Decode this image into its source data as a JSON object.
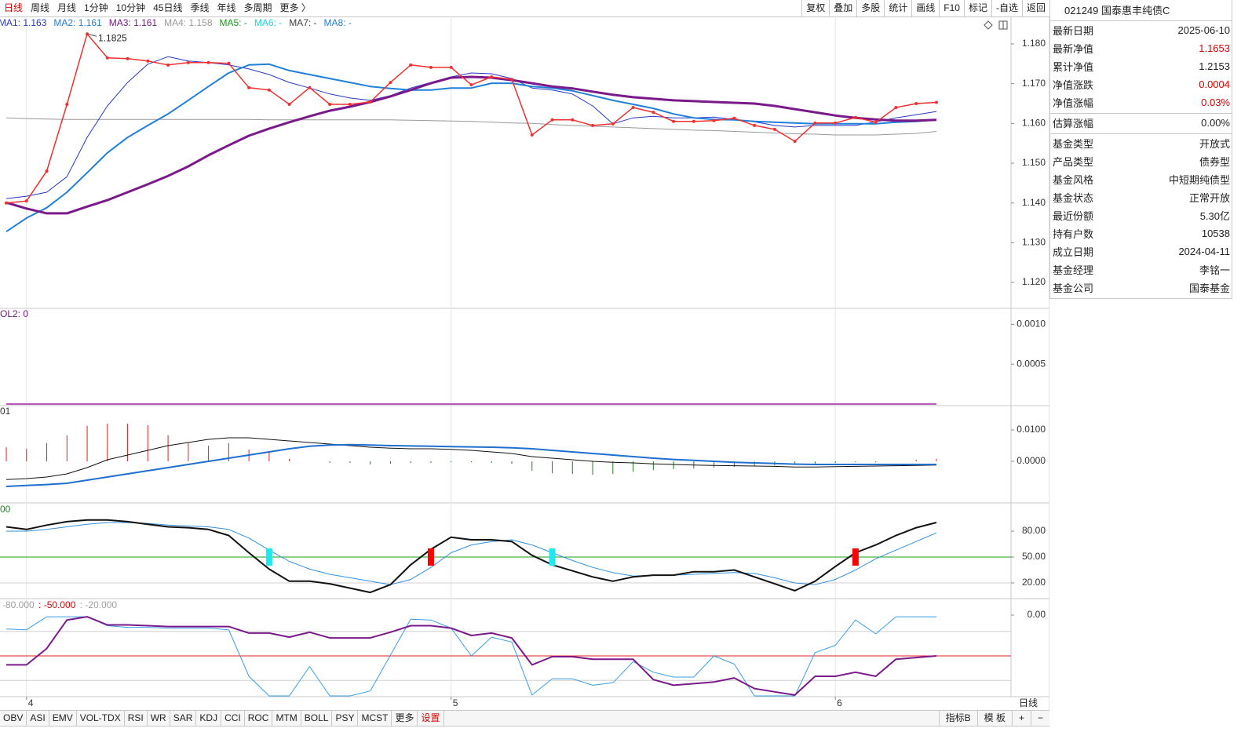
{
  "toolbar": {
    "periods": [
      "日线",
      "周线",
      "月线",
      "1分钟",
      "10分钟",
      "45日线",
      "季线",
      "年线",
      "多周期",
      "更多 〉"
    ],
    "active": 0,
    "active_color": "#e00000",
    "tools": [
      "复权",
      "叠加",
      "多股",
      "统计",
      "画线",
      "F10",
      "标记",
      "-自选",
      "返回"
    ]
  },
  "fund": {
    "title": "021249 国泰惠丰纯债C",
    "groups": [
      [
        {
          "label": "最新日期",
          "value": "2025-06-10"
        },
        {
          "label": "最新净值",
          "value": "1.1653",
          "color": "#e00000"
        },
        {
          "label": "累计净值",
          "value": "1.2153"
        },
        {
          "label": "净值涨跌",
          "value": "0.0004",
          "color": "#e00000"
        },
        {
          "label": "净值涨幅",
          "value": "0.03%",
          "color": "#e00000"
        }
      ],
      [
        {
          "label": "估算涨幅",
          "value": "0.00%"
        }
      ],
      [
        {
          "label": "基金类型",
          "value": "开放式"
        },
        {
          "label": "产品类型",
          "value": "债券型"
        },
        {
          "label": "基金风格",
          "value": "中短期纯债型"
        },
        {
          "label": "基金状态",
          "value": "正常开放"
        },
        {
          "label": "最近份额",
          "value": "5.30亿"
        },
        {
          "label": "持有户数",
          "value": "10538"
        },
        {
          "label": "成立日期",
          "value": "2024-04-11"
        },
        {
          "label": "基金经理",
          "value": "李铭一"
        },
        {
          "label": "基金公司",
          "value": "国泰基金"
        }
      ]
    ]
  },
  "main": {
    "legend": [
      {
        "text": "MA1: 1.163",
        "color": "#2838c8"
      },
      {
        "text": "MA2: 1.161",
        "color": "#2080d8"
      },
      {
        "text": "MA3: 1.161",
        "color": "#7a1a8a"
      },
      {
        "text": "MA4: 1.158",
        "color": "#999999"
      },
      {
        "text": "MA5: -",
        "color": "#1a9a1a"
      },
      {
        "text": "MA6: -",
        "color": "#20d0e0"
      },
      {
        "text": "MA7: -",
        "color": "#404040"
      },
      {
        "text": "MA8: -",
        "color": "#2080d8"
      }
    ],
    "ylim": [
      1.1135,
      1.1867
    ],
    "yticks": [
      {
        "value": 1.12,
        "label": "1.120"
      },
      {
        "value": 1.13,
        "label": "1.130"
      },
      {
        "value": 1.14,
        "label": "1.140"
      },
      {
        "value": 1.15,
        "label": "1.150"
      },
      {
        "value": 1.16,
        "label": "1.160"
      },
      {
        "value": 1.17,
        "label": "1.170"
      },
      {
        "value": 1.18,
        "label": "1.180"
      }
    ],
    "price": {
      "color": "#f03030",
      "values": [
        1.14,
        1.1405,
        1.148,
        1.1648,
        1.1825,
        1.1765,
        1.1763,
        1.1757,
        1.1747,
        1.1753,
        1.1753,
        1.1751,
        1.169,
        1.1684,
        1.1648,
        1.169,
        1.1648,
        1.1648,
        1.1654,
        1.1703,
        1.1747,
        1.1741,
        1.1741,
        1.1697,
        1.1717,
        1.1711,
        1.1571,
        1.1609,
        1.1609,
        1.1595,
        1.1599,
        1.164,
        1.1628,
        1.1605,
        1.1605,
        1.1607,
        1.1613,
        1.1595,
        1.1585,
        1.1555,
        1.1601,
        1.1601,
        1.1615,
        1.1603,
        1.164,
        1.165,
        1.1653
      ]
    },
    "ma": [
      {
        "color": "#999999",
        "width": 1,
        "values": [
          1.1614,
          1.1612,
          1.1611,
          1.161,
          1.161,
          1.161,
          1.161,
          1.161,
          1.161,
          1.161,
          1.161,
          1.161,
          1.161,
          1.1609,
          1.1609,
          1.1609,
          1.1609,
          1.1609,
          1.1609,
          1.1609,
          1.1608,
          1.1607,
          1.1606,
          1.1605,
          1.1603,
          1.1601,
          1.16,
          1.1597,
          1.1595,
          1.1593,
          1.1591,
          1.1589,
          1.1587,
          1.1585,
          1.1583,
          1.1582,
          1.158,
          1.1578,
          1.1576,
          1.1574,
          1.1573,
          1.1571,
          1.1571,
          1.1571,
          1.1573,
          1.1575,
          1.158
        ]
      },
      {
        "color": "#2838c8",
        "width": 1,
        "values": [
          1.1411,
          1.1417,
          1.1427,
          1.1466,
          1.1565,
          1.1644,
          1.1703,
          1.1749,
          1.1768,
          1.1757,
          1.1753,
          1.1747,
          1.1737,
          1.1723,
          1.1703,
          1.1689,
          1.1674,
          1.1664,
          1.1658,
          1.167,
          1.1689,
          1.1703,
          1.1717,
          1.1727,
          1.1725,
          1.1713,
          1.1689,
          1.1684,
          1.1674,
          1.1644,
          1.1599,
          1.1614,
          1.1618,
          1.1614,
          1.1614,
          1.1616,
          1.161,
          1.1604,
          1.1595,
          1.1591,
          1.1595,
          1.1595,
          1.1595,
          1.1604,
          1.1614,
          1.1622,
          1.163
        ]
      },
      {
        "color": "#2080d8",
        "width": 2,
        "values": [
          1.1328,
          1.1362,
          1.1388,
          1.1427,
          1.1476,
          1.1526,
          1.1565,
          1.1595,
          1.1624,
          1.1658,
          1.1693,
          1.1727,
          1.1747,
          1.1749,
          1.1733,
          1.1723,
          1.1713,
          1.1703,
          1.1693,
          1.1688,
          1.1684,
          1.1684,
          1.1689,
          1.1689,
          1.1701,
          1.1701,
          1.1693,
          1.1689,
          1.1682,
          1.167,
          1.1658,
          1.1648,
          1.1638,
          1.1624,
          1.1614,
          1.161,
          1.1609,
          1.1605,
          1.1603,
          1.1601,
          1.1599,
          1.1599,
          1.1599,
          1.1599,
          1.1603,
          1.1605,
          1.1609
        ]
      },
      {
        "color": "#7a1a8a",
        "width": 3,
        "values": [
          1.1401,
          1.1386,
          1.1374,
          1.1374,
          1.1391,
          1.1407,
          1.1427,
          1.1447,
          1.1468,
          1.1492,
          1.152,
          1.1545,
          1.1569,
          1.1587,
          1.1603,
          1.1618,
          1.1632,
          1.1642,
          1.1654,
          1.1668,
          1.1684,
          1.1701,
          1.1715,
          1.1717,
          1.1715,
          1.1709,
          1.1701,
          1.1693,
          1.1688,
          1.168,
          1.1672,
          1.1666,
          1.1662,
          1.1658,
          1.1656,
          1.1654,
          1.1652,
          1.165,
          1.1644,
          1.1636,
          1.1628,
          1.162,
          1.1614,
          1.161,
          1.1607,
          1.1607,
          1.1609
        ]
      }
    ],
    "max_label": {
      "text": "1.1825",
      "index": 4
    }
  },
  "vol": {
    "label": "OL2: 0",
    "color": "#a020a0",
    "ylim": [
      -2e-05,
      0.0012
    ],
    "yticks": [
      {
        "value": 0.0005,
        "label": "0.0005"
      },
      {
        "value": 0.001,
        "label": "0.0010"
      }
    ],
    "values": [
      0,
      0,
      0,
      0,
      0,
      0,
      0,
      0,
      0,
      0,
      0,
      0,
      0,
      0,
      0,
      0,
      0,
      0,
      0,
      0,
      0,
      0,
      0,
      0,
      0,
      0,
      0,
      0,
      0,
      0,
      0,
      0,
      0,
      0,
      0,
      0,
      0,
      0,
      0,
      0,
      0,
      0,
      0,
      0,
      0,
      0,
      0
    ]
  },
  "macd": {
    "label": "01",
    "ylim": [
      -0.01325,
      0.01775
    ],
    "yticks": [
      {
        "value": 0,
        "label": "0.0000"
      },
      {
        "value": 0.01,
        "label": "0.0100"
      }
    ],
    "up_color": "#e02020",
    "down_color": "#208020",
    "bars": [
      0.0045,
      0.004,
      0.0058,
      0.0083,
      0.0113,
      0.012,
      0.012,
      0.0115,
      0.0083,
      0.0058,
      0.005,
      0.0058,
      0.0038,
      0.0028,
      0.0008,
      0,
      -0.0005,
      -0.0005,
      -0.001,
      -0.0008,
      -0.0005,
      -0.0005,
      -0.0003,
      -0.0003,
      -0.0005,
      -0.0008,
      -0.003,
      -0.0038,
      -0.004,
      -0.0043,
      -0.004,
      -0.0033,
      -0.0028,
      -0.0025,
      -0.0023,
      -0.002,
      -0.0018,
      -0.0015,
      -0.0013,
      -0.001,
      -0.0008,
      -0.0005,
      -0.0003,
      -0.0003,
      0,
      0.0005,
      0.0008
    ],
    "lines": [
      {
        "color": "#111111",
        "width": 1,
        "values": [
          -0.0058,
          -0.0055,
          -0.005,
          -0.004,
          -0.002,
          0.0005,
          0.002,
          0.0035,
          0.005,
          0.006,
          0.007,
          0.0075,
          0.0075,
          0.007,
          0.0065,
          0.006,
          0.0055,
          0.005,
          0.0045,
          0.0042,
          0.004,
          0.004,
          0.0038,
          0.0035,
          0.003,
          0.0025,
          0.0015,
          0.001,
          0.0005,
          0,
          -0.0003,
          -0.0005,
          -0.0008,
          -0.001,
          -0.0012,
          -0.0013,
          -0.0014,
          -0.0015,
          -0.0016,
          -0.0018,
          -0.0018,
          -0.0017,
          -0.0016,
          -0.0015,
          -0.0014,
          -0.0013,
          -0.0012
        ]
      },
      {
        "color": "#1e6fd0",
        "width": 2,
        "values": [
          -0.008,
          -0.0077,
          -0.0074,
          -0.007,
          -0.006,
          -0.005,
          -0.004,
          -0.003,
          -0.002,
          -0.001,
          0,
          0.001,
          0.002,
          0.003,
          0.004,
          0.0048,
          0.0052,
          0.0053,
          0.0052,
          0.005,
          0.0049,
          0.0048,
          0.0047,
          0.0046,
          0.0045,
          0.0043,
          0.004,
          0.0035,
          0.003,
          0.0025,
          0.002,
          0.0015,
          0.001,
          0.0006,
          0.0003,
          0,
          -0.0003,
          -0.0005,
          -0.0007,
          -0.0009,
          -0.001,
          -0.001,
          -0.001,
          -0.001,
          -0.001,
          -0.001,
          -0.001
        ]
      }
    ]
  },
  "kdj": {
    "label": "00",
    "label_color": "#1a8a1a",
    "ylim": [
      1.8,
      112.7
    ],
    "yticks": [
      {
        "value": 20,
        "label": "20.00"
      },
      {
        "value": 50,
        "label": "50.00"
      },
      {
        "value": 80,
        "label": "80.00"
      }
    ],
    "ref_lines": [
      {
        "value": 20,
        "color": "#d0d0d0"
      },
      {
        "value": 50,
        "color": "#1aa01a"
      }
    ],
    "lines": [
      {
        "color": "#3090e0",
        "width": 1,
        "values": [
          80,
          80,
          82,
          85,
          88,
          90,
          90,
          89,
          87,
          86,
          85,
          82,
          72,
          58,
          45,
          36,
          30,
          26,
          22,
          18,
          24,
          38,
          55,
          64,
          68,
          70,
          64,
          55,
          46,
          38,
          32,
          28,
          29,
          29,
          30,
          31,
          32,
          31,
          26,
          20,
          18,
          24,
          35,
          48,
          58,
          68,
          78
        ]
      },
      {
        "color": "#111111",
        "width": 2,
        "values": [
          85,
          82,
          87,
          91,
          93,
          93,
          91,
          88,
          85,
          84,
          82,
          75,
          55,
          36,
          22,
          22,
          19,
          14,
          9,
          18,
          41,
          59,
          73,
          70,
          70,
          68,
          52,
          41,
          34,
          27,
          22,
          27,
          29,
          29,
          33,
          33,
          35,
          27,
          19,
          11,
          22,
          39,
          55,
          64,
          75,
          84,
          90
        ]
      }
    ],
    "signals": [
      {
        "index": 13,
        "color": "#20e8f0"
      },
      {
        "index": 21,
        "color": "#ff0000"
      },
      {
        "index": 27,
        "color": "#20e8f0"
      },
      {
        "index": 42,
        "color": "#ff0000"
      }
    ]
  },
  "wr": {
    "labels": [
      {
        "text": "-80.000",
        "color": "#a0a0a0"
      },
      {
        "text": " : -50.000",
        "color": "#e00000"
      },
      {
        "text": " : -20.000",
        "color": "#a0a0a0"
      }
    ],
    "ylim": [
      -100,
      20.2
    ],
    "yticks": [
      {
        "value": 0,
        "label": "0.00"
      }
    ],
    "ref_lines": [
      {
        "value": -80,
        "color": "#d0d0d0"
      },
      {
        "value": -50,
        "color": "#e02020"
      },
      {
        "value": -20,
        "color": "#d0d0d0"
      }
    ],
    "lines": [
      {
        "color": "#3a9ee6",
        "width": 1,
        "values": [
          -17,
          -18,
          -2,
          -2,
          -2,
          -13,
          -15,
          -15,
          -16,
          -16,
          -16,
          -18,
          -75,
          -99,
          -99,
          -63,
          -99,
          -99,
          -93,
          -49,
          -5,
          -6,
          -16,
          -50,
          -27,
          -33,
          -98,
          -78,
          -78,
          -86,
          -83,
          -57,
          -70,
          -76,
          -76,
          -50,
          -60,
          -99,
          -99,
          -99,
          -46,
          -37,
          -6,
          -23,
          -2,
          -2,
          -2
        ]
      },
      {
        "color": "#7a1a8a",
        "width": 2,
        "values": [
          -61,
          -61,
          -41,
          -6,
          -2,
          -12,
          -12,
          -13,
          -14,
          -14,
          -14,
          -14,
          -22,
          -22,
          -27,
          -21,
          -28,
          -28,
          -28,
          -21,
          -13,
          -13,
          -16,
          -25,
          -22,
          -28,
          -61,
          -51,
          -51,
          -54,
          -54,
          -54,
          -79,
          -86,
          -84,
          -82,
          -77,
          -90,
          -94,
          -98,
          -75,
          -75,
          -70,
          -75,
          -54,
          -52,
          -50
        ]
      }
    ]
  },
  "x_axis": {
    "labels": [
      {
        "index": 1,
        "label": "4"
      },
      {
        "index": 22,
        "label": "5"
      },
      {
        "index": 41,
        "label": "6"
      }
    ],
    "period": "日线"
  },
  "tabs": {
    "items": [
      "OBV",
      "ASI",
      "EMV",
      "VOL-TDX",
      "RSI",
      "WR",
      "SAR",
      "KDJ",
      "CCI",
      "ROC",
      "MTM",
      "BOLL",
      "PSY",
      "MCST",
      "更多",
      "设置"
    ],
    "active": 15,
    "active_color": "#e00000",
    "right": [
      "指标B",
      "模 板",
      "+",
      "−"
    ]
  }
}
